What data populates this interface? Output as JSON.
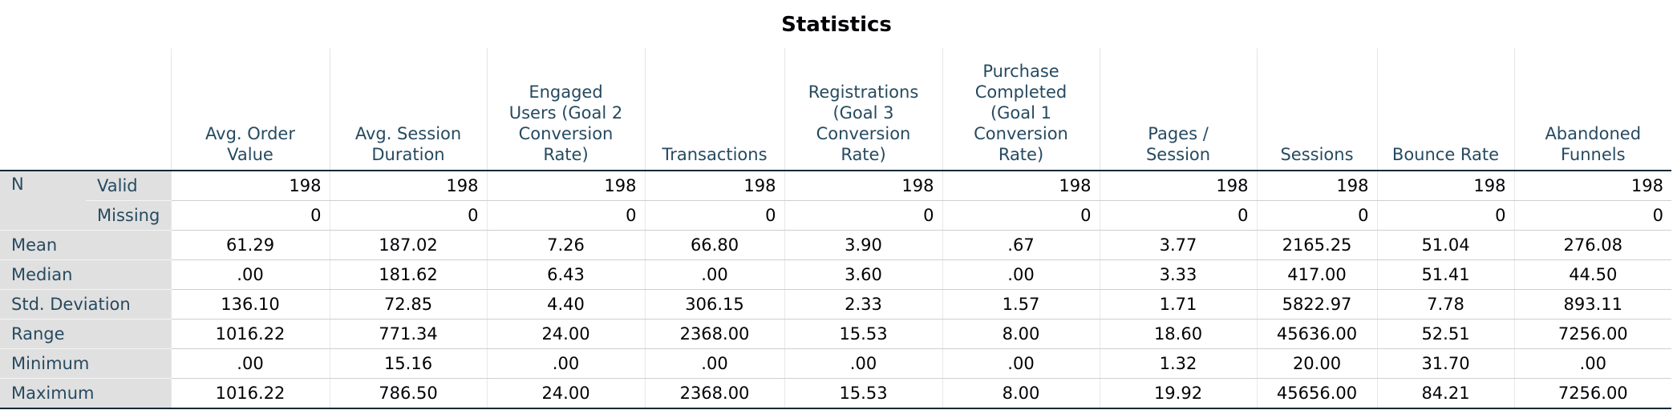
{
  "title": "Statistics",
  "columns": [
    "Avg. Order\nValue",
    "Avg. Session\nDuration",
    "Engaged\nUsers (Goal 2\nConversion\nRate)",
    "Transactions",
    "Registrations\n(Goal 3\nConversion\nRate)",
    "Purchase\nCompleted\n(Goal 1\nConversion\nRate)",
    "Pages /\nSession",
    "Sessions",
    "Bounce Rate",
    "Abandoned\nFunnels"
  ],
  "rows": [
    {
      "label": "N",
      "sublabel": "Valid",
      "values": [
        "198",
        "198",
        "198",
        "198",
        "198",
        "198",
        "198",
        "198",
        "198",
        "198"
      ]
    },
    {
      "sublabel": "Missing",
      "values": [
        "0",
        "0",
        "0",
        "0",
        "0",
        "0",
        "0",
        "0",
        "0",
        "0"
      ]
    },
    {
      "label": "Mean",
      "values": [
        "61.29",
        "187.02",
        "7.26",
        "66.80",
        "3.90",
        ".67",
        "3.77",
        "2165.25",
        "51.04",
        "276.08"
      ]
    },
    {
      "label": "Median",
      "values": [
        ".00",
        "181.62",
        "6.43",
        ".00",
        "3.60",
        ".00",
        "3.33",
        "417.00",
        "51.41",
        "44.50"
      ]
    },
    {
      "label": "Std. Deviation",
      "values": [
        "136.10",
        "72.85",
        "4.40",
        "306.15",
        "2.33",
        "1.57",
        "1.71",
        "5822.97",
        "7.78",
        "893.11"
      ]
    },
    {
      "label": "Range",
      "values": [
        "1016.22",
        "771.34",
        "24.00",
        "2368.00",
        "15.53",
        "8.00",
        "18.60",
        "45636.00",
        "52.51",
        "7256.00"
      ]
    },
    {
      "label": "Minimum",
      "values": [
        ".00",
        "15.16",
        ".00",
        ".00",
        ".00",
        ".00",
        "1.32",
        "20.00",
        "31.70",
        ".00"
      ]
    },
    {
      "label": "Maximum",
      "values": [
        "1016.22",
        "786.50",
        "24.00",
        "2368.00",
        "15.53",
        "8.00",
        "19.92",
        "45656.00",
        "84.21",
        "7256.00"
      ]
    }
  ]
}
